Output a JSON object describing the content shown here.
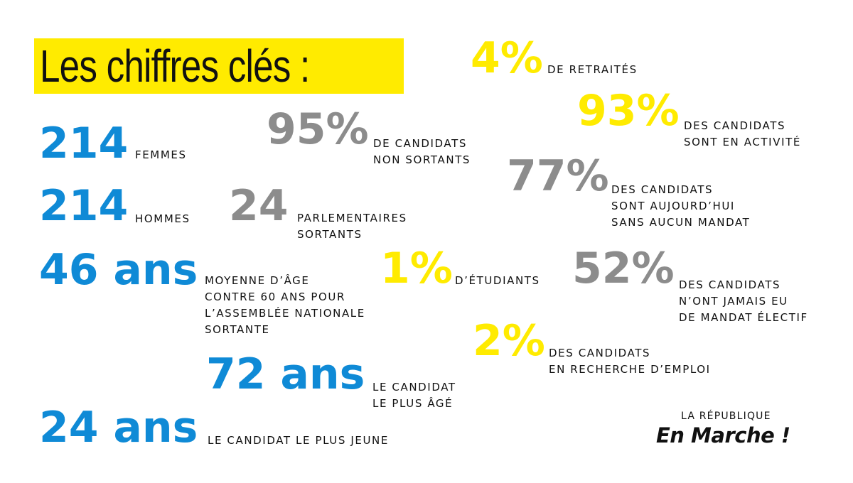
{
  "title": "Les chiffres clés :",
  "stats": {
    "femmes": {
      "value": "214",
      "label": "femmes"
    },
    "hommes": {
      "value": "214",
      "label": "hommes"
    },
    "age_moyen": {
      "value": "46 ans",
      "label_lines": [
        "moyenne d’âge",
        "contre 60 ans pour",
        "l’Assemblée nationale",
        "sortante"
      ]
    },
    "plus_age": {
      "value": "72 ans",
      "label_lines": [
        "le candidat",
        "le plus âgé"
      ]
    },
    "plus_jeune": {
      "value": "24 ans",
      "label": "le candidat le plus jeune"
    },
    "non_sortants": {
      "value": "95%",
      "label_lines": [
        "de candidats",
        "non sortants"
      ]
    },
    "parlementaires": {
      "value": "24",
      "label_lines": [
        "parlementaires",
        "sortants"
      ]
    },
    "etudiants": {
      "value": "1%",
      "label": "d’étudiants"
    },
    "retraites": {
      "value": "4%",
      "label": "de retraités"
    },
    "en_activite": {
      "value": "93%",
      "label_lines": [
        "des candidats",
        "sont en activité"
      ]
    },
    "sans_mandat": {
      "value": "77%",
      "label_lines": [
        "des candidats",
        "sont aujourd’hui",
        "sans aucun mandat"
      ]
    },
    "jamais_mandat": {
      "value": "52%",
      "label_lines": [
        "des candidats",
        "n’ont jamais eu",
        "de mandat électif"
      ]
    },
    "recherche_emploi": {
      "value": "2%",
      "label_lines": [
        "des candidats",
        "en recherche d’emploi"
      ]
    }
  },
  "colors": {
    "blue": "#0f8ad6",
    "gray": "#8c8c8c",
    "yellow": "#ffeb00",
    "title_bg": "#ffeb00"
  },
  "logo": {
    "top": "LA RÉPUBLIQUE",
    "main": "En Marche !"
  }
}
